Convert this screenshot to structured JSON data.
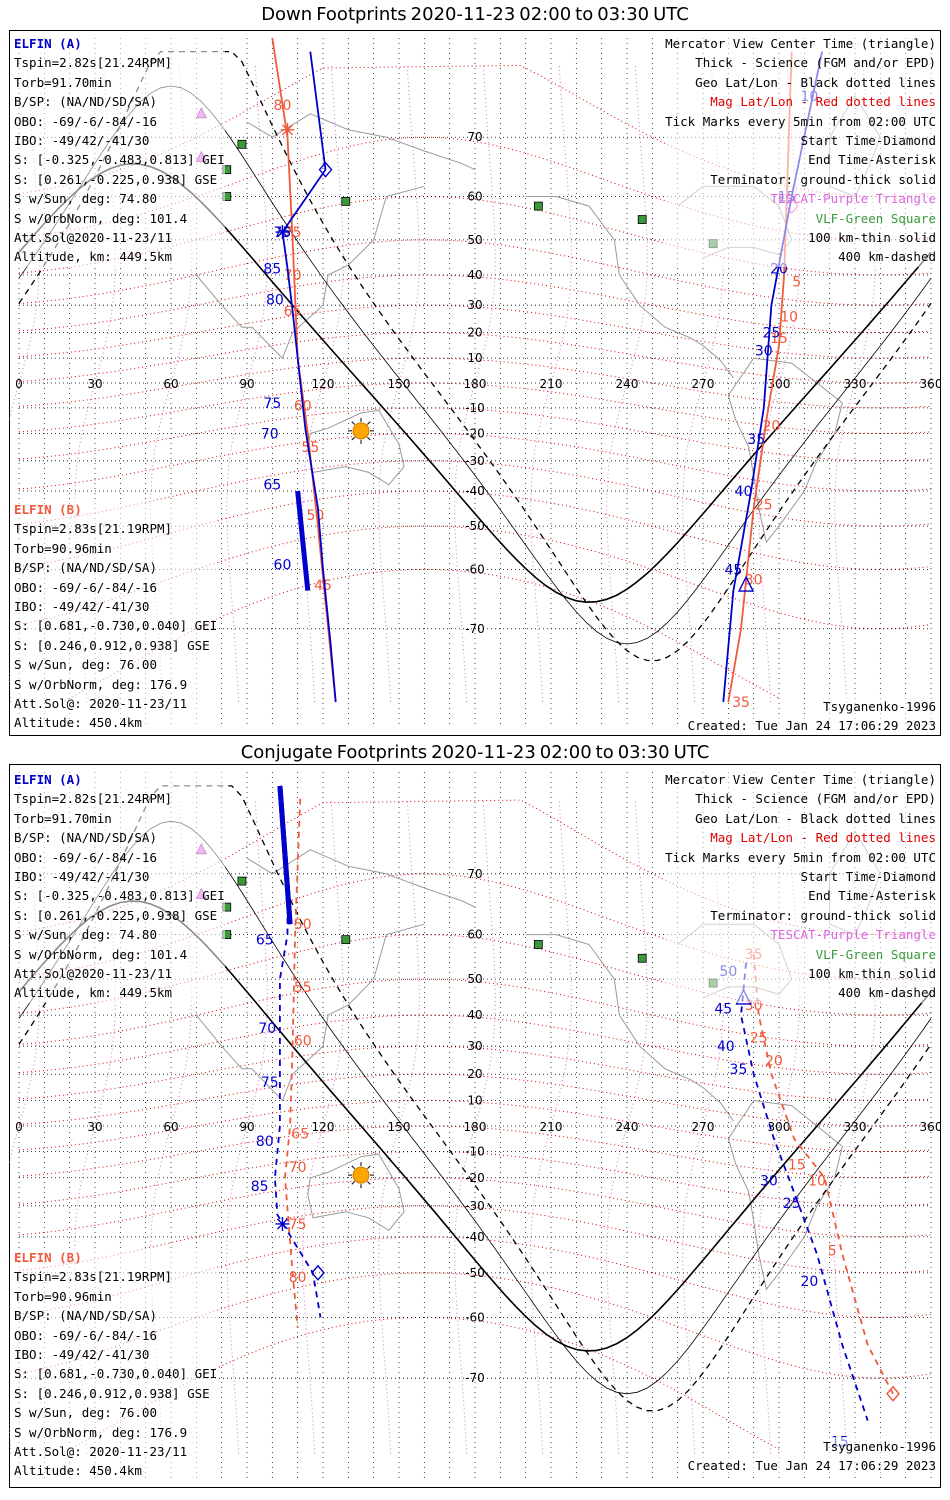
{
  "panels": [
    {
      "title_word1": "Down",
      "title_word2": "Footprints",
      "title_date": "2020-11-23",
      "title_t1": "02:00",
      "title_to": "to",
      "title_t2": "03:30",
      "title_tz": "UTC",
      "elfin_a": [
        "ELFIN (A)",
        "Tspin=2.82s[21.24RPM]",
        "Torb=91.70min",
        "B/SP: (NA/ND/SD/SA)",
        "OBO: -69/-6/-84/-16",
        "IBO: -49/42/-41/30",
        "S: [-0.325,-0.483,0.813] GEI",
        "S: [0.261,-0.225,0.938] GSE",
        "S w/Sun, deg: 74.80",
        "S w/OrbNorm, deg: 101.4",
        "Att.Sol@2020-11-23/11",
        "Altitude, km: 449.5km"
      ],
      "elfin_b": [
        "ELFIN (B)",
        "Tspin=2.83s[21.19RPM]",
        "Torb=90.96min",
        "B/SP: (NA/ND/SD/SA)",
        "OBO: -69/-6/-84/-16",
        "IBO: -49/42/-41/30",
        "S: [0.681,-0.730,0.040] GEI",
        "S: [0.246,0.912,0.938] GSE",
        "S w/Sun, deg: 76.00",
        "S w/OrbNorm, deg: 176.9",
        "Att.Sol@: 2020-11-23/11",
        "Altitude: 450.4km"
      ],
      "legend": [
        "Mercator View Center Time (triangle)",
        "Thick - Science (FGM and/or EPD)",
        "Geo Lat/Lon - Black dotted lines",
        "Mag Lat/Lon - Red dotted lines",
        "Tick Marks every 5min from 02:00 UTC",
        "Start Time-Diamond",
        "End Time-Asterisk",
        "Terminator: ground-thick solid",
        "TESCAT-Purple Triangle",
        "VLF-Green Square",
        "100 km-thin solid",
        "400 km-dashed"
      ],
      "model": "Tsyganenko-1996",
      "created": "Created: Tue Jan 24 17:06:29 2023"
    },
    {
      "title_word1": "Conjugate",
      "title_word2": "Footprints",
      "title_date": "2020-11-23",
      "title_t1": "02:00",
      "title_to": "to",
      "title_t2": "03:30",
      "title_tz": "UTC",
      "elfin_a": [
        "ELFIN (A)",
        "Tspin=2.82s[21.24RPM]",
        "Torb=91.70min",
        "B/SP: (NA/ND/SD/SA)",
        "OBO: -69/-6/-84/-16",
        "IBO: -49/42/-41/30",
        "S: [-0.325,-0.483,0.813] GEI",
        "S: [0.261,-0.225,0.938] GSE",
        "S w/Sun, deg: 74.80",
        "S w/OrbNorm, deg: 101.4",
        "Att.Sol@2020-11-23/11",
        "Altitude, km: 449.5km"
      ],
      "elfin_b": [
        "ELFIN (B)",
        "Tspin=2.83s[21.19RPM]",
        "Torb=90.96min",
        "B/SP: (NA/ND/SD/SA)",
        "OBO: -69/-6/-84/-16",
        "IBO: -49/42/-41/30",
        "S: [0.681,-0.730,0.040] GEI",
        "S: [0.246,0.912,0.938] GSE",
        "S w/Sun, deg: 76.00",
        "S w/OrbNorm, deg: 176.9",
        "Att.Sol@: 2020-11-23/11",
        "Altitude: 450.4km"
      ],
      "legend": [
        "Mercator View Center Time (triangle)",
        "Thick - Science (FGM and/or EPD)",
        "Geo Lat/Lon - Black dotted lines",
        "Mag Lat/Lon - Red dotted lines",
        "Tick Marks every 5min from 02:00 UTC",
        "Start Time-Diamond",
        "End Time-Asterisk",
        "Terminator: ground-thick solid",
        "TESCAT-Purple Triangle",
        "VLF-Green Square",
        "100 km-thin solid",
        "400 km-dashed"
      ],
      "model": "Tsyganenko-1996",
      "created": "Created: Tue Jan 24 17:06:29 2023"
    }
  ],
  "colors": {
    "elfin_a": "#0000cc",
    "elfin_b": "#f05a3c",
    "mag_grid": "#e00000",
    "tescat": "#e066e0",
    "vlf": "#3a9a3a",
    "terminator": "#000000",
    "coast": "#9a9a9a"
  },
  "chart_data": [
    {
      "type": "map",
      "projection": "mercator",
      "xlim": [
        0,
        360
      ],
      "ylim": [
        -80,
        80
      ],
      "lon_ticks": [
        0,
        30,
        60,
        90,
        120,
        150,
        180,
        210,
        240,
        270,
        300,
        330,
        360
      ],
      "lat_ticks": [
        70,
        60,
        50,
        40,
        30,
        20,
        10,
        -10,
        -20,
        -30,
        -40,
        -50,
        -60,
        -70
      ],
      "grid": true,
      "elfin_a_track": {
        "points": [
          [
            115,
            79
          ],
          [
            121,
            65
          ],
          [
            104,
            52
          ],
          [
            106,
            42
          ],
          [
            108,
            28
          ],
          [
            110,
            10
          ],
          [
            113,
            -18
          ],
          [
            118,
            -45
          ],
          [
            120,
            -60
          ],
          [
            123,
            -72
          ],
          [
            125,
            -78
          ]
        ],
        "tick_labels": [
          {
            "label": "75",
            "lon": 104,
            "lat": 52
          },
          {
            "label": "80",
            "lon": 101,
            "lat": 32
          },
          {
            "label": "85",
            "lon": 100,
            "lat": 42
          },
          {
            "label": "75",
            "lon": 100,
            "lat": -8
          },
          {
            "label": "70",
            "lon": 99,
            "lat": -20
          },
          {
            "label": "65",
            "lon": 100,
            "lat": -38
          },
          {
            "label": "60",
            "lon": 104,
            "lat": -59
          }
        ],
        "science_segment": [
          [
            110,
            -40
          ],
          [
            114,
            -64
          ]
        ],
        "start_diamond": [
          121,
          65
        ],
        "end_asterisk": [
          104,
          52
        ]
      },
      "elfin_a_second_pass": {
        "points": [
          [
            317,
            79
          ],
          [
            305,
            60
          ],
          [
            297,
            30
          ],
          [
            294,
            -10
          ],
          [
            289,
            -40
          ],
          [
            282,
            -64
          ],
          [
            278,
            -78
          ]
        ],
        "tick_labels": [
          {
            "label": "10",
            "lon": 312,
            "lat": 75
          },
          {
            "label": "15",
            "lon": 303,
            "lat": 60
          },
          {
            "label": "20",
            "lon": 300,
            "lat": 42
          },
          {
            "label": "25",
            "lon": 297,
            "lat": 20
          },
          {
            "label": "30",
            "lon": 294,
            "lat": 13
          },
          {
            "label": "35",
            "lon": 291,
            "lat": -22
          },
          {
            "label": "40",
            "lon": 286,
            "lat": -40
          },
          {
            "label": "45",
            "lon": 282,
            "lat": -60
          }
        ],
        "center_triangle": [
          287,
          -63
        ]
      },
      "elfin_b_track": {
        "points": [
          [
            100,
            80
          ],
          [
            106,
            70
          ],
          [
            108,
            50
          ],
          [
            110,
            10
          ],
          [
            114,
            -20
          ],
          [
            118,
            -50
          ],
          [
            121,
            -66
          ],
          [
            125,
            -78
          ]
        ],
        "tick_labels": [
          {
            "label": "80",
            "lon": 104,
            "lat": 74
          },
          {
            "label": "75",
            "lon": 108,
            "lat": 52
          },
          {
            "label": "70",
            "lon": 108,
            "lat": 40
          },
          {
            "label": "65",
            "lon": 108,
            "lat": 28
          },
          {
            "label": "60",
            "lon": 112,
            "lat": -9
          },
          {
            "label": "55",
            "lon": 115,
            "lat": -25
          },
          {
            "label": "50",
            "lon": 117,
            "lat": -47
          },
          {
            "label": "45",
            "lon": 120,
            "lat": -63
          }
        ],
        "end_asterisk_b": [
          106,
          71
        ]
      },
      "elfin_b_second_pass": {
        "points": [
          [
            305,
            79
          ],
          [
            302,
            40
          ],
          [
            300,
            15
          ],
          [
            295,
            -15
          ],
          [
            290,
            -45
          ],
          [
            285,
            -70
          ],
          [
            280,
            -78
          ]
        ],
        "tick_labels": [
          {
            "label": "5",
            "lon": 307,
            "lat": 38
          },
          {
            "label": "10",
            "lon": 304,
            "lat": 26
          },
          {
            "label": "15",
            "lon": 300,
            "lat": 18
          },
          {
            "label": "20",
            "lon": 297,
            "lat": -17
          },
          {
            "label": "25",
            "lon": 294,
            "lat": -44
          },
          {
            "label": "30",
            "lon": 290,
            "lat": -62
          },
          {
            "label": "35",
            "lon": 285,
            "lat": -78
          }
        ],
        "tescat_diamond": [
          305,
          58
        ]
      },
      "sun": [
        135,
        -19
      ],
      "vlf_stations": [
        [
          88,
          69
        ],
        [
          82,
          65
        ],
        [
          82,
          60
        ],
        [
          129,
          59
        ],
        [
          205,
          58
        ],
        [
          246,
          55
        ],
        [
          274,
          49
        ]
      ],
      "tescat_triangle": [
        [
          72,
          73
        ],
        [
          72,
          67
        ]
      ]
    },
    {
      "type": "map",
      "projection": "mercator",
      "xlim": [
        0,
        360
      ],
      "ylim": [
        -80,
        80
      ],
      "lon_ticks": [
        0,
        30,
        60,
        90,
        120,
        150,
        180,
        210,
        240,
        270,
        300,
        330,
        360
      ],
      "lat_ticks": [
        70,
        60,
        50,
        40,
        30,
        20,
        10,
        -10,
        -20,
        -30,
        -40,
        -50,
        -60,
        -70
      ],
      "grid": true,
      "elfin_a_track": {
        "points": [
          [
            103,
            79
          ],
          [
            106,
            68
          ],
          [
            106,
            60
          ],
          [
            103,
            50
          ],
          [
            103,
            30
          ],
          [
            103,
            0
          ],
          [
            101,
            -20
          ],
          [
            102,
            -33
          ],
          [
            116,
            -50
          ],
          [
            119,
            -60
          ]
        ],
        "tick_labels": [
          {
            "label": "65",
            "lon": 97,
            "lat": 59
          },
          {
            "label": "70",
            "lon": 98,
            "lat": 36
          },
          {
            "label": "75",
            "lon": 99,
            "lat": 17
          },
          {
            "label": "80",
            "lon": 97,
            "lat": -6
          },
          {
            "label": "85",
            "lon": 95,
            "lat": -23
          }
        ],
        "science_segment": [
          [
            103,
            79
          ],
          [
            107,
            62
          ]
        ],
        "start_diamond": [
          118,
          -50
        ],
        "end_asterisk": [
          104,
          -36
        ]
      },
      "elfin_a_second_pass": {
        "points": [
          [
            287,
            54
          ],
          [
            285,
            40
          ],
          [
            290,
            20
          ],
          [
            298,
            -5
          ],
          [
            305,
            -23
          ],
          [
            315,
            -45
          ],
          [
            325,
            -65
          ],
          [
            335,
            -75
          ]
        ],
        "tick_labels": [
          {
            "label": "50",
            "lon": 280,
            "lat": 52
          },
          {
            "label": "45",
            "lon": 278,
            "lat": 42
          },
          {
            "label": "40",
            "lon": 279,
            "lat": 30
          },
          {
            "label": "35",
            "lon": 284,
            "lat": 22
          },
          {
            "label": "30",
            "lon": 296,
            "lat": -21
          },
          {
            "label": "25",
            "lon": 305,
            "lat": -29
          },
          {
            "label": "20",
            "lon": 312,
            "lat": -52
          },
          {
            "label": "15",
            "lon": 324,
            "lat": -77
          }
        ],
        "center_triangle": [
          286,
          45
        ]
      },
      "elfin_b_track": {
        "points": [
          [
            111,
            78
          ],
          [
            109,
            60
          ],
          [
            108,
            30
          ],
          [
            107,
            0
          ],
          [
            105,
            -20
          ],
          [
            108,
            -50
          ],
          [
            110,
            -62
          ]
        ],
        "tick_labels": [
          {
            "label": "50",
            "lon": 112,
            "lat": 62
          },
          {
            "label": "55",
            "lon": 112,
            "lat": 48
          },
          {
            "label": "60",
            "lon": 112,
            "lat": 32
          },
          {
            "label": "65",
            "lon": 111,
            "lat": -3
          },
          {
            "label": "70",
            "lon": 110,
            "lat": -16
          },
          {
            "label": "75",
            "lon": 110,
            "lat": -36
          },
          {
            "label": "80",
            "lon": 110,
            "lat": -51
          }
        ]
      },
      "elfin_b_second_pass": {
        "points": [
          [
            290,
            56
          ],
          [
            292,
            40
          ],
          [
            297,
            20
          ],
          [
            306,
            -5
          ],
          [
            318,
            -20
          ],
          [
            325,
            -45
          ],
          [
            335,
            -65
          ],
          [
            345,
            -72
          ]
        ],
        "tick_labels": [
          {
            "label": "35",
            "lon": 290,
            "lat": 56
          },
          {
            "label": "30",
            "lon": 290,
            "lat": 43
          },
          {
            "label": "25",
            "lon": 292,
            "lat": 33
          },
          {
            "label": "20",
            "lon": 298,
            "lat": 25
          },
          {
            "label": "15",
            "lon": 307,
            "lat": -15
          },
          {
            "label": "10",
            "lon": 315,
            "lat": -21
          },
          {
            "label": "5",
            "lon": 321,
            "lat": -44
          }
        ],
        "start_diamond": [
          345,
          -72
        ]
      },
      "sun": [
        135,
        -19
      ],
      "vlf_stations": [
        [
          88,
          69
        ],
        [
          82,
          65
        ],
        [
          82,
          60
        ],
        [
          129,
          59
        ],
        [
          205,
          58
        ],
        [
          246,
          55
        ],
        [
          274,
          49
        ]
      ],
      "tescat_triangle": [
        [
          72,
          73
        ],
        [
          72,
          67
        ]
      ]
    }
  ]
}
